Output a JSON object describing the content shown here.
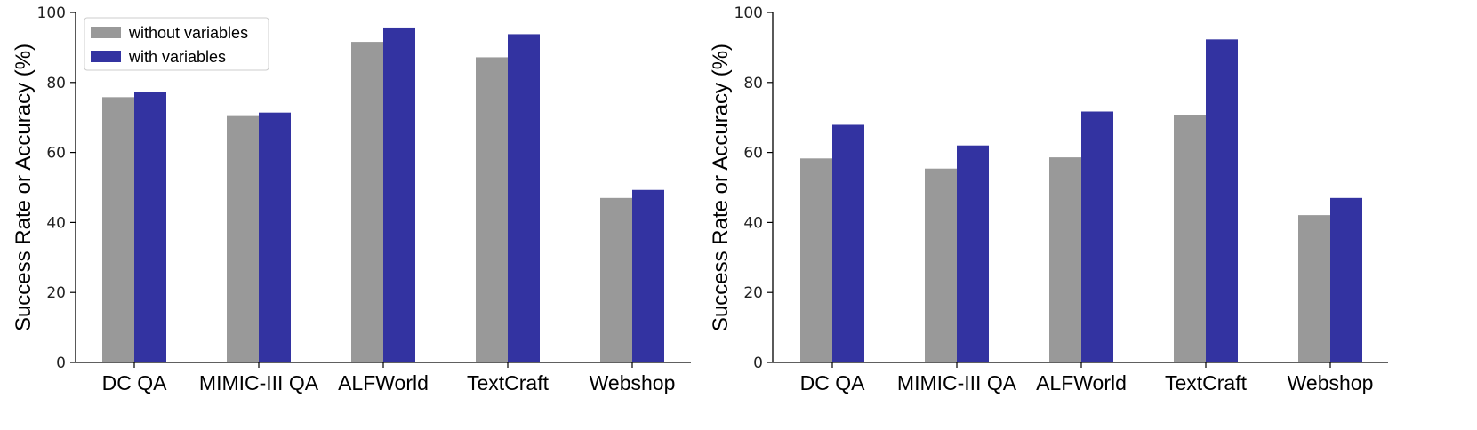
{
  "chart_data": [
    {
      "type": "bar",
      "ylabel": "Success Rate or Accuracy (%)",
      "xlabel": "",
      "ylim": [
        0,
        100
      ],
      "yticks": [
        0,
        20,
        40,
        60,
        80,
        100
      ],
      "grid": false,
      "legend": "top-left",
      "categories": [
        "DC QA",
        "MIMIC-III QA",
        "ALFWorld",
        "TextCraft",
        "Webshop"
      ],
      "series": [
        {
          "name": "without variables",
          "color": "#999999",
          "values": [
            75.8,
            70.4,
            91.6,
            87.2,
            47.0
          ]
        },
        {
          "name": "with variables",
          "color": "#3333a1",
          "values": [
            77.2,
            71.4,
            95.7,
            93.8,
            49.3
          ]
        }
      ]
    },
    {
      "type": "bar",
      "ylabel": "Success Rate or Accuracy (%)",
      "xlabel": "",
      "ylim": [
        0,
        100
      ],
      "yticks": [
        0,
        20,
        40,
        60,
        80,
        100
      ],
      "grid": false,
      "legend": "none",
      "categories": [
        "DC QA",
        "MIMIC-III QA",
        "ALFWorld",
        "TextCraft",
        "Webshop"
      ],
      "series": [
        {
          "name": "without variables",
          "color": "#999999",
          "values": [
            58.3,
            55.4,
            58.6,
            70.8,
            42.1
          ]
        },
        {
          "name": "with variables",
          "color": "#3333a1",
          "values": [
            67.9,
            62.0,
            71.7,
            92.3,
            47.0
          ]
        }
      ]
    }
  ]
}
